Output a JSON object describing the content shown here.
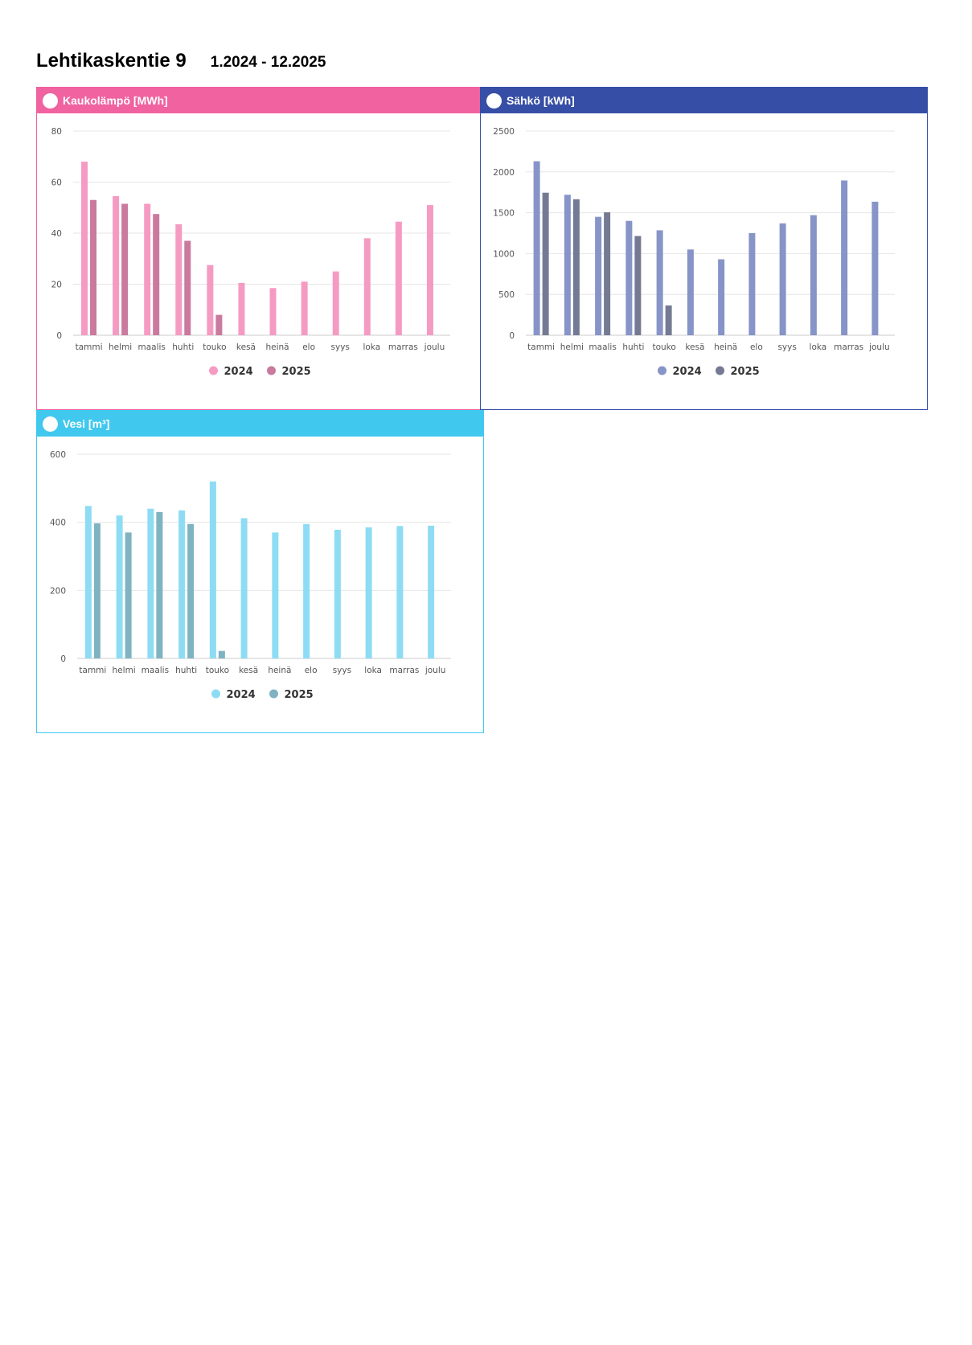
{
  "header": {
    "title": "Lehtikaskentie 9",
    "period": "1.2024 - 12.2025"
  },
  "colors": {
    "heat_accent": "#f062a0",
    "heat_2024": "#f59bc3",
    "heat_2025": "#c97a9e",
    "elec_accent": "#364ea5",
    "elec_2024": "#8794c7",
    "elec_2025": "#757a94",
    "water_accent": "#40c8ef",
    "water_2024": "#8ddcf4",
    "water_2025": "#7fb3c2"
  },
  "panels": {
    "heat": {
      "title": "Kaukolämpö [MWh]"
    },
    "elec": {
      "title": "Sähkö [kWh]"
    },
    "water": {
      "title": "Vesi [m³]"
    }
  },
  "chart_data": [
    {
      "id": "heat",
      "type": "bar",
      "title": "Kaukolämpö [MWh]",
      "categories": [
        "tammi",
        "helmi",
        "maalis",
        "huhti",
        "touko",
        "kesä",
        "heinä",
        "elo",
        "syys",
        "loka",
        "marras",
        "joulu"
      ],
      "series": [
        {
          "name": "2024",
          "values": [
            68,
            54.5,
            51.5,
            43.5,
            27.5,
            20.5,
            18.5,
            21,
            25,
            38,
            44.5,
            51
          ]
        },
        {
          "name": "2025",
          "values": [
            53,
            51.5,
            47.5,
            37,
            8,
            null,
            null,
            null,
            null,
            null,
            null,
            null
          ]
        }
      ],
      "ylim": [
        0,
        80
      ],
      "yticks": [
        0,
        20,
        40,
        60,
        80
      ],
      "grid": true,
      "legend": "bottom-center"
    },
    {
      "id": "elec",
      "type": "bar",
      "title": "Sähkö [kWh]",
      "categories": [
        "tammi",
        "helmi",
        "maalis",
        "huhti",
        "touko",
        "kesä",
        "heinä",
        "elo",
        "syys",
        "loka",
        "marras",
        "joulu"
      ],
      "series": [
        {
          "name": "2024",
          "values": [
            2130,
            1720,
            1450,
            1400,
            1285,
            1050,
            930,
            1250,
            1370,
            1470,
            1895,
            1635
          ]
        },
        {
          "name": "2025",
          "values": [
            1745,
            1665,
            1505,
            1215,
            365,
            null,
            null,
            null,
            null,
            null,
            null,
            null
          ]
        }
      ],
      "ylim": [
        0,
        2500
      ],
      "yticks": [
        0,
        500,
        1000,
        1500,
        2000,
        2500
      ],
      "grid": true,
      "legend": "bottom-center"
    },
    {
      "id": "water",
      "type": "bar",
      "title": "Vesi [m³]",
      "categories": [
        "tammi",
        "helmi",
        "maalis",
        "huhti",
        "touko",
        "kesä",
        "heinä",
        "elo",
        "syys",
        "loka",
        "marras",
        "joulu"
      ],
      "series": [
        {
          "name": "2024",
          "values": [
            448,
            420,
            440,
            435,
            520,
            412,
            370,
            395,
            378,
            385,
            389,
            390
          ]
        },
        {
          "name": "2025",
          "values": [
            397,
            370,
            430,
            395,
            22,
            null,
            null,
            null,
            null,
            null,
            null,
            null
          ]
        }
      ],
      "ylim": [
        0,
        600
      ],
      "yticks": [
        0,
        200,
        400,
        600
      ],
      "grid": true,
      "legend": "bottom-center"
    }
  ]
}
